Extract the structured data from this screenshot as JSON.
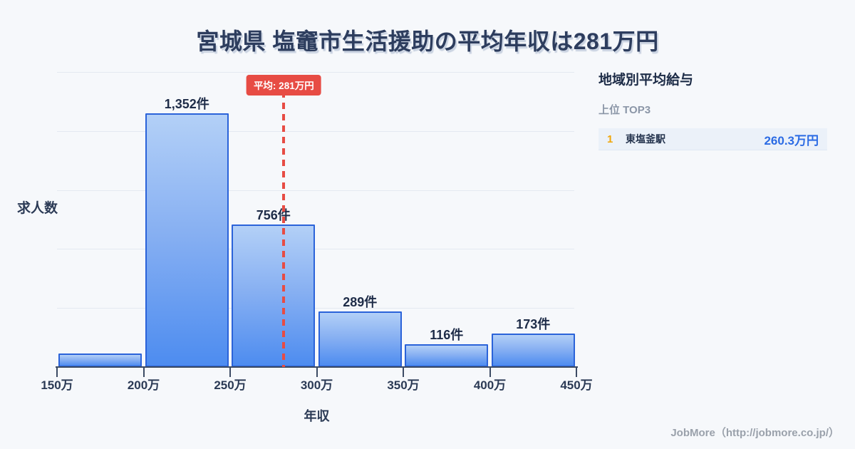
{
  "title": "宮城県 塩竈市生活援助の平均年収は281万円",
  "chart_data": {
    "type": "bar",
    "title": "宮城県 塩竈市生活援助の平均年収は281万円",
    "xlabel": "年収",
    "ylabel": "求人数",
    "x_tick_labels": [
      "150万",
      "200万",
      "250万",
      "300万",
      "350万",
      "400万",
      "450万"
    ],
    "x_range": [
      150,
      450
    ],
    "ylim": [
      0,
      1580
    ],
    "grid": true,
    "gridline_count": 5,
    "bars": [
      {
        "range": [
          150,
          200
        ],
        "value": 65,
        "label": ""
      },
      {
        "range": [
          200,
          250
        ],
        "value": 1352,
        "label": "1,352件"
      },
      {
        "range": [
          250,
          300
        ],
        "value": 756,
        "label": "756件"
      },
      {
        "range": [
          300,
          350
        ],
        "value": 289,
        "label": "289件"
      },
      {
        "range": [
          350,
          400
        ],
        "value": 116,
        "label": "116件"
      },
      {
        "range": [
          400,
          450
        ],
        "value": 173,
        "label": "173件"
      }
    ],
    "average_line": {
      "x_value": 281,
      "label": "平均: 281万円"
    }
  },
  "sidebar": {
    "title": "地域別平均給与",
    "subtitle": "上位 TOP3",
    "rows": [
      {
        "rank": "1",
        "name": "東塩釜駅",
        "value": "260.3万円"
      }
    ]
  },
  "footer": {
    "credit": "JobMore（http://jobmore.co.jp/）"
  },
  "colors": {
    "background": "#f6f8fb",
    "title_text": "#2d3d5e",
    "bar_fill_top": "#b3d0f7",
    "bar_fill_bottom": "#4d8cf0",
    "bar_border": "#2b63d9",
    "bar_label_text": "#1e2c48",
    "gridline": "#e4e9f1",
    "axis": "#3c4b64",
    "average_accent": "#e74c44",
    "rank_number": "#f0a70a",
    "rank_value": "#2b6be4",
    "subtitle_gray": "#8b96a7",
    "footer_gray": "#9aa1ab"
  }
}
